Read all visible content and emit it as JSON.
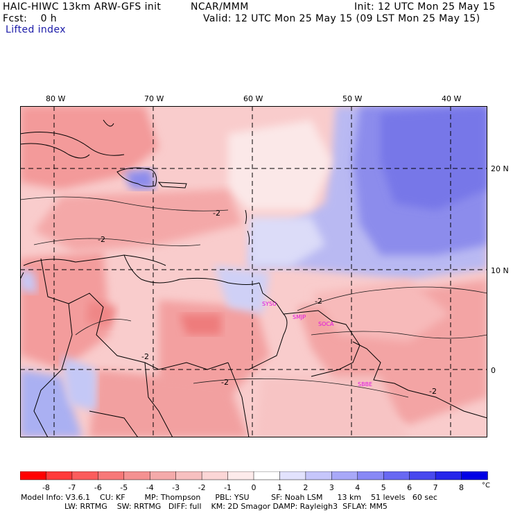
{
  "header": {
    "model_title": "HAIC-HIWC 13km ARW-GFS init",
    "org": "NCAR/MMM",
    "init": "Init: 12 UTC Mon 25 May 15",
    "forecast": "Fcst:    0 h",
    "valid": "Valid: 12 UTC Mon 25 May 15 (09 LST Mon 25 May 15)",
    "field": "Lifted index"
  },
  "map": {
    "lon_labels": [
      "80 W",
      "70 W",
      "60 W",
      "50 W",
      "40 W"
    ],
    "lat_labels": [
      "20 N",
      "10 N",
      "0"
    ],
    "stations": [
      "SYSU",
      "SMJP",
      "SOCA",
      "SBBE"
    ],
    "contour_label": "-2"
  },
  "colorbar": {
    "labels": [
      "-8",
      "-7",
      "-6",
      "-5",
      "-4",
      "-3",
      "-2",
      "-1",
      "0",
      "1",
      "2",
      "3",
      "4",
      "5",
      "6",
      "7",
      "8"
    ],
    "unit": "°C",
    "colors": [
      "#ff0000",
      "#ff3a3a",
      "#fb5c5c",
      "#f77878",
      "#f49191",
      "#f4aaaa",
      "#f7c0c0",
      "#fbd6d6",
      "#fdebeb",
      "#ffffff",
      "#e2e2fd",
      "#c6c6fb",
      "#a8a8f8",
      "#8888f5",
      "#6868f2",
      "#4848ee",
      "#2626ea",
      "#0000e5"
    ]
  },
  "footer": {
    "line1": "Model Info: V3.6.1    CU: KF        MP: Thompson      PBL: YSU         SF: Noah LSM      13 km    51 levels   60 sec",
    "line2": "                  LW: RRTMG    SW: RRTMG   DIFF: full    KM: 2D Smagor DAMP: Rayleigh3  SFLAY: MM5"
  }
}
